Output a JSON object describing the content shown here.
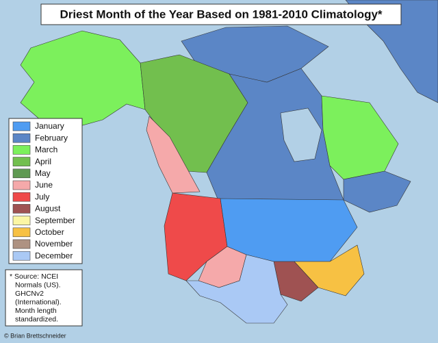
{
  "title": "Driest Month of the Year Based on 1981-2010 Climatology*",
  "legend": [
    {
      "label": "January",
      "color": "#4f9cf2"
    },
    {
      "label": "February",
      "color": "#5b86c6"
    },
    {
      "label": "March",
      "color": "#7cf05c"
    },
    {
      "label": "April",
      "color": "#72bf4e"
    },
    {
      "label": "May",
      "color": "#5f9a52"
    },
    {
      "label": "June",
      "color": "#f5a9aa"
    },
    {
      "label": "July",
      "color": "#ef4a4a"
    },
    {
      "label": "August",
      "color": "#9f5252"
    },
    {
      "label": "September",
      "color": "#fbf6a4"
    },
    {
      "label": "October",
      "color": "#f7c143"
    },
    {
      "label": "November",
      "color": "#ae9282"
    },
    {
      "label": "December",
      "color": "#aac9f5"
    }
  ],
  "note": [
    "* Source: NCEI",
    "Normals (US).",
    "GHCNv2",
    "(International).",
    "Month length",
    "standardized."
  ],
  "credit": "© Brian Brettschneider"
}
